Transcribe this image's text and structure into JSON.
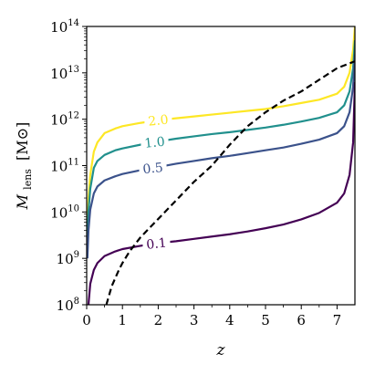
{
  "chart_data": {
    "type": "line",
    "xlabel": "z",
    "ylabel_main": "M",
    "ylabel_sub": "lens",
    "ylabel_unit": "[M⊙]",
    "xlim": [
      0,
      7.5
    ],
    "ylim": [
      8,
      14
    ],
    "y_scale": "log10",
    "x_ticks": [
      0,
      1,
      2,
      3,
      4,
      5,
      6,
      7
    ],
    "x_tick_labels": [
      "0",
      "1",
      "2",
      "3",
      "4",
      "5",
      "6",
      "7"
    ],
    "y_ticks": [
      8,
      9,
      10,
      11,
      12,
      13,
      14
    ],
    "y_tick_labels": [
      {
        "base": "10",
        "exp": "8"
      },
      {
        "base": "10",
        "exp": "9"
      },
      {
        "base": "10",
        "exp": "10"
      },
      {
        "base": "10",
        "exp": "11"
      },
      {
        "base": "10",
        "exp": "12"
      },
      {
        "base": "10",
        "exp": "13"
      },
      {
        "base": "10",
        "exp": "14"
      }
    ],
    "grid": false,
    "series": [
      {
        "name": "2.0",
        "color": "#fde725",
        "style": "solid",
        "label_x": 2.0,
        "x": [
          0.02,
          0.05,
          0.1,
          0.2,
          0.3,
          0.5,
          0.8,
          1.0,
          1.5,
          2.0,
          2.5,
          3.0,
          3.5,
          4.0,
          4.5,
          5.0,
          5.5,
          6.0,
          6.5,
          7.0,
          7.2,
          7.35,
          7.45,
          7.5
        ],
        "y_log10": [
          9.6,
          10.3,
          10.8,
          11.3,
          11.5,
          11.7,
          11.8,
          11.85,
          11.92,
          11.98,
          12.02,
          12.06,
          12.1,
          12.14,
          12.18,
          12.22,
          12.28,
          12.35,
          12.42,
          12.55,
          12.7,
          13.0,
          13.5,
          14.0
        ]
      },
      {
        "name": "1.0",
        "color": "#21908d",
        "style": "solid",
        "label_x": 1.9,
        "x": [
          0.02,
          0.05,
          0.1,
          0.2,
          0.3,
          0.5,
          0.8,
          1.0,
          1.5,
          2.0,
          2.5,
          3.0,
          3.5,
          4.0,
          4.5,
          5.0,
          5.5,
          6.0,
          6.5,
          7.0,
          7.2,
          7.35,
          7.45,
          7.5
        ],
        "y_log10": [
          9.3,
          10.0,
          10.5,
          10.95,
          11.1,
          11.23,
          11.33,
          11.37,
          11.45,
          11.52,
          11.58,
          11.63,
          11.68,
          11.72,
          11.77,
          11.82,
          11.88,
          11.95,
          12.03,
          12.15,
          12.3,
          12.6,
          13.1,
          13.7
        ]
      },
      {
        "name": "0.5",
        "color": "#3b528b",
        "style": "solid",
        "label_x": 1.85,
        "x": [
          0.02,
          0.05,
          0.1,
          0.2,
          0.3,
          0.5,
          0.8,
          1.0,
          1.5,
          2.0,
          2.5,
          3.0,
          3.5,
          4.0,
          4.5,
          5.0,
          5.5,
          6.0,
          6.5,
          7.0,
          7.2,
          7.35,
          7.45,
          7.5
        ],
        "y_log10": [
          9.0,
          9.6,
          10.05,
          10.4,
          10.55,
          10.68,
          10.77,
          10.82,
          10.9,
          10.97,
          11.04,
          11.1,
          11.16,
          11.21,
          11.27,
          11.33,
          11.39,
          11.47,
          11.56,
          11.7,
          11.85,
          12.15,
          12.7,
          13.4
        ]
      },
      {
        "name": "0.1",
        "color": "#440154",
        "style": "solid",
        "label_x": 1.95,
        "x": [
          0.05,
          0.1,
          0.2,
          0.3,
          0.5,
          0.8,
          1.0,
          1.5,
          2.0,
          2.5,
          3.0,
          3.5,
          4.0,
          4.5,
          5.0,
          5.5,
          6.0,
          6.5,
          7.0,
          7.2,
          7.35,
          7.45,
          7.5
        ],
        "y_log10": [
          8.0,
          8.45,
          8.75,
          8.9,
          9.05,
          9.15,
          9.2,
          9.27,
          9.33,
          9.37,
          9.42,
          9.47,
          9.52,
          9.58,
          9.65,
          9.73,
          9.84,
          9.98,
          10.2,
          10.4,
          10.8,
          11.5,
          12.8
        ]
      },
      {
        "name": "",
        "color": "#000000",
        "style": "dashed",
        "x": [
          0.55,
          0.7,
          0.9,
          1.0,
          1.2,
          1.5,
          2.0,
          2.5,
          3.0,
          3.5,
          4.0,
          4.5,
          5.0,
          5.5,
          6.0,
          6.5,
          7.0,
          7.5
        ],
        "y_log10": [
          8.0,
          8.4,
          8.75,
          8.9,
          9.15,
          9.45,
          9.85,
          10.25,
          10.65,
          11.0,
          11.45,
          11.85,
          12.15,
          12.4,
          12.6,
          12.85,
          13.1,
          13.25
        ]
      }
    ]
  }
}
